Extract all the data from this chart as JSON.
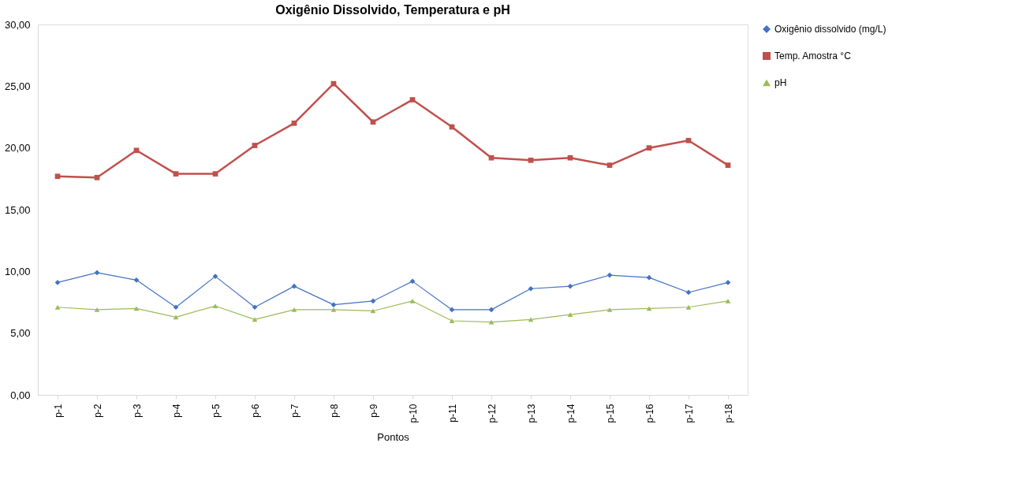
{
  "chart_data": {
    "type": "line",
    "title": "Oxigênio Dissolvido, Temperatura e pH",
    "xlabel": "Pontos",
    "categories": [
      "p-1",
      "p-2",
      "p-3",
      "p-4",
      "p-5",
      "p-6",
      "p-7",
      "p-8",
      "p-9",
      "p-10",
      "p-11",
      "p-12",
      "p-13",
      "p-14",
      "p-15",
      "p-16",
      "p-17",
      "p-18"
    ],
    "series": [
      {
        "name": "Oxigênio dissolvido (mg/L)",
        "color": "#4472c4",
        "marker": "diamond",
        "values": [
          9.1,
          9.9,
          9.3,
          7.1,
          9.6,
          7.1,
          8.8,
          7.3,
          7.6,
          9.2,
          6.9,
          6.9,
          8.6,
          8.8,
          9.7,
          9.5,
          8.3,
          9.1
        ]
      },
      {
        "name": "Temp. Amostra °C",
        "color": "#c0504d",
        "marker": "square",
        "values": [
          17.7,
          17.6,
          19.8,
          17.9,
          17.9,
          20.2,
          22.0,
          25.2,
          22.1,
          23.9,
          21.7,
          19.2,
          19.0,
          19.2,
          18.6,
          20.0,
          20.6,
          18.6
        ]
      },
      {
        "name": "pH",
        "color": "#9bbb59",
        "marker": "triangle",
        "values": [
          7.1,
          6.9,
          7.0,
          6.3,
          7.2,
          6.1,
          6.9,
          6.9,
          6.8,
          7.6,
          6.0,
          5.9,
          6.1,
          6.5,
          6.9,
          7.0,
          7.1,
          7.6
        ]
      }
    ],
    "ylim": [
      0,
      30
    ],
    "yticks": [
      {
        "value": 0,
        "label": "0,00"
      },
      {
        "value": 5,
        "label": "5,00"
      },
      {
        "value": 10,
        "label": "10,00"
      },
      {
        "value": 15,
        "label": "15,00"
      },
      {
        "value": 20,
        "label": "20,00"
      },
      {
        "value": 25,
        "label": "25,00"
      },
      {
        "value": 30,
        "label": "30,00"
      }
    ],
    "grid": false,
    "legend": "right",
    "line_style": "solid"
  }
}
